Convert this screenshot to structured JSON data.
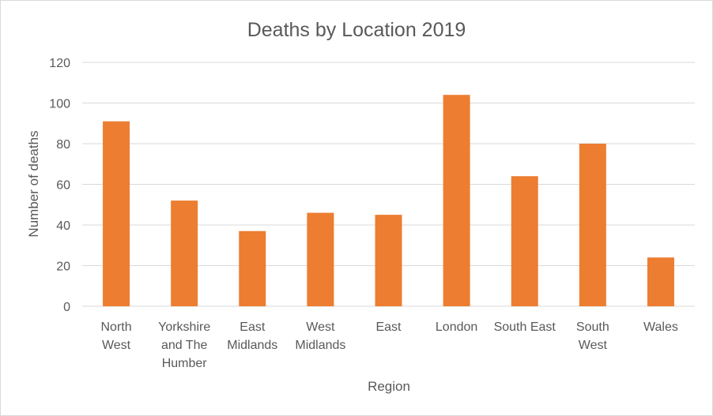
{
  "chart_data": {
    "type": "bar",
    "title": "Deaths by Location 2019",
    "xlabel": "Region",
    "ylabel": "Number of deaths",
    "categories": [
      [
        "North",
        "West"
      ],
      [
        "Yorkshire",
        "and The",
        "Humber"
      ],
      [
        "East",
        "Midlands"
      ],
      [
        "West",
        "Midlands"
      ],
      [
        "East"
      ],
      [
        "London"
      ],
      [
        "South East"
      ],
      [
        "South",
        "West"
      ],
      [
        "Wales"
      ]
    ],
    "values": [
      91,
      52,
      37,
      46,
      45,
      104,
      64,
      80,
      24
    ],
    "ylim": [
      0,
      120
    ],
    "yticks": [
      "0",
      "20",
      "40",
      "60",
      "80",
      "100",
      "120"
    ],
    "grid": true,
    "legend": "none",
    "bar_color": "#ED7D31",
    "gridline_color": "#D9D9D9",
    "text_color": "#595959"
  }
}
